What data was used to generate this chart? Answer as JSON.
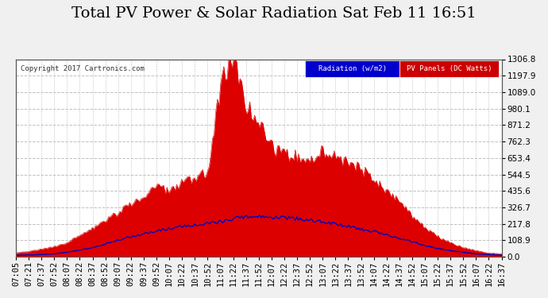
{
  "title": "Total PV Power & Solar Radiation Sat Feb 11 16:51",
  "copyright": "Copyright 2017 Cartronics.com",
  "legend_label1": "Radiation (w/m2)",
  "legend_label2": "PV Panels (DC Watts)",
  "legend_bg1": "#0000cc",
  "legend_bg2": "#cc0000",
  "right_yticks": [
    0.0,
    108.9,
    217.8,
    326.7,
    435.6,
    544.5,
    653.4,
    762.3,
    871.2,
    980.1,
    1089.0,
    1197.9,
    1306.8
  ],
  "ymax": 1306.8,
  "ymin": 0.0,
  "bg_color": "#f0f0f0",
  "plot_bg": "#ffffff",
  "grid_color": "#c0c0c0",
  "pv_color": "#dd0000",
  "rad_color": "#0000bb",
  "title_fontsize": 14,
  "tick_fontsize": 7.5,
  "time_labels": [
    "07:05",
    "07:21",
    "07:37",
    "07:52",
    "08:07",
    "08:22",
    "08:37",
    "08:52",
    "09:07",
    "09:22",
    "09:37",
    "09:52",
    "10:07",
    "10:22",
    "10:37",
    "10:52",
    "11:07",
    "11:22",
    "11:37",
    "11:52",
    "12:07",
    "12:22",
    "12:37",
    "12:52",
    "13:07",
    "13:22",
    "13:37",
    "13:52",
    "14:07",
    "14:22",
    "14:37",
    "14:52",
    "15:07",
    "15:22",
    "15:37",
    "15:52",
    "16:07",
    "16:22",
    "16:37"
  ],
  "pv_base": [
    25,
    35,
    50,
    65,
    90,
    140,
    180,
    240,
    280,
    340,
    390,
    450,
    420,
    480,
    510,
    540,
    1100,
    1280,
    980,
    900,
    700,
    660,
    650,
    620,
    680,
    640,
    600,
    560,
    500,
    420,
    360,
    260,
    190,
    130,
    90,
    60,
    40,
    25,
    20
  ],
  "rad_base": [
    10,
    12,
    15,
    20,
    30,
    45,
    60,
    85,
    110,
    130,
    150,
    170,
    185,
    200,
    210,
    220,
    230,
    250,
    265,
    270,
    260,
    255,
    250,
    240,
    230,
    215,
    200,
    180,
    165,
    145,
    120,
    100,
    75,
    55,
    40,
    30,
    20,
    15,
    10
  ]
}
